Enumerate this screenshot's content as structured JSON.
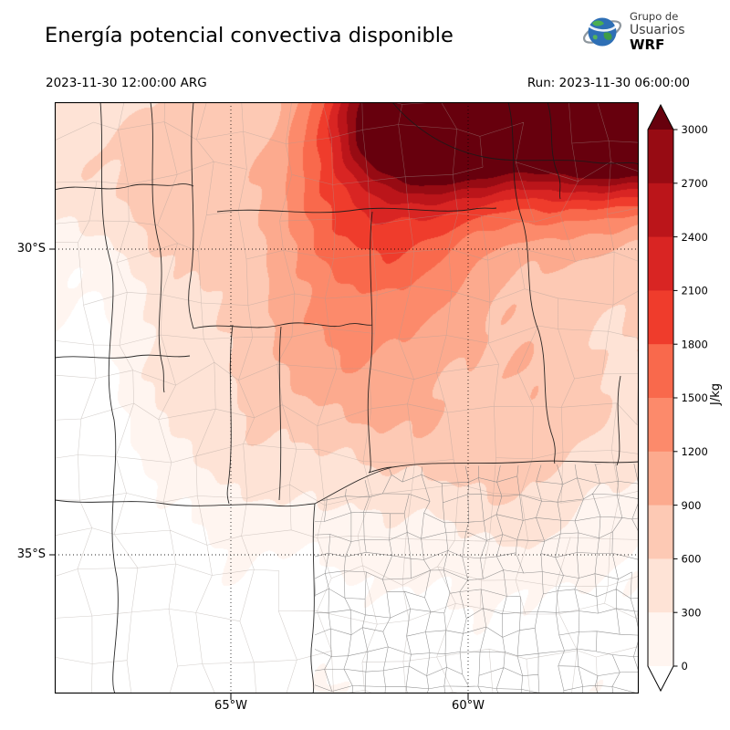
{
  "header": {
    "title": "Energía potencial convectiva disponible",
    "valid_time": "2023-11-30 12:00:00 ARG",
    "run_label": "Run: 2023-11-30 06:00:00",
    "logo": {
      "line1": "Grupo de",
      "line2": "Usuarios",
      "line3": "WRF"
    }
  },
  "map": {
    "lat_ticks": [
      {
        "label": "30°S"
      },
      {
        "label": "35°S"
      }
    ],
    "lon_ticks": [
      {
        "label": "65°W"
      },
      {
        "label": "60°W"
      }
    ]
  },
  "colorbar": {
    "units": "J/kg",
    "tick_labels": [
      "3000",
      "2700",
      "2400",
      "2100",
      "1800",
      "1500",
      "1200",
      "900",
      "600",
      "300",
      "0"
    ],
    "band_colors_low_to_high": [
      "#fff5f0",
      "#fee3d6",
      "#fdc9b4",
      "#fcaa8e",
      "#fc8a6b",
      "#f9694c",
      "#ef3c2c",
      "#d92523",
      "#bb151a",
      "#970b13"
    ],
    "over_color": "#67000d",
    "under_color": "#ffffff"
  },
  "chart_data": {
    "type": "heatmap",
    "title": "Energía potencial convectiva disponible",
    "variable": "CAPE (convective available potential energy)",
    "units": "J/kg",
    "valid_time": "2023-11-30 12:00:00 ARG",
    "model_run": "2023-11-30 06:00:00",
    "levels": [
      0,
      300,
      600,
      900,
      1200,
      1500,
      1800,
      2100,
      2400,
      2700,
      3000
    ],
    "colormap": "Reds",
    "colorbar_extended_above": true,
    "x_tick_labels": [
      "65°W",
      "60°W"
    ],
    "y_tick_labels": [
      "30°S",
      "35°S"
    ],
    "grid": "dotted graticule at labeled meridians and parallels",
    "max_region": "northeast corner of domain, values above 3000 J/kg",
    "min_region": "southern and western (Andean) part of domain, values near 0 J/kg"
  }
}
